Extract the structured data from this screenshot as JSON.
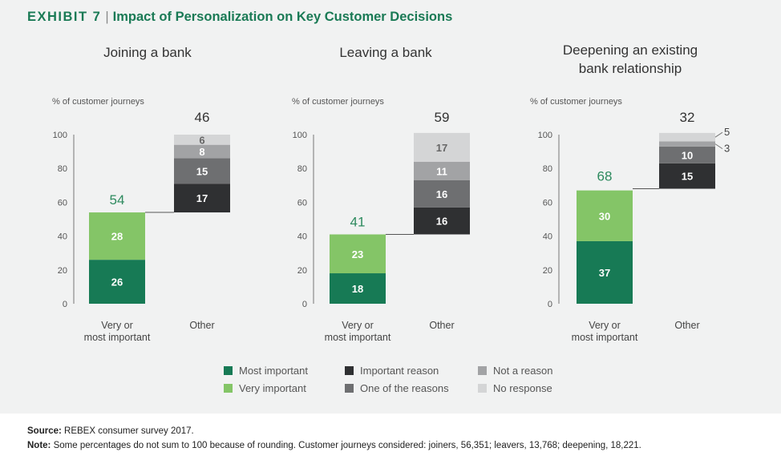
{
  "header": {
    "exhibit_label": "EXHIBIT 7",
    "separator": "|",
    "title": "Impact of Personalization on Key Customer Decisions"
  },
  "colors": {
    "most_important": "#177a55",
    "very_important": "#84c567",
    "important_reason": "#2f3032",
    "one_of_the_reasons": "#6e6f71",
    "not_a_reason": "#a2a3a5",
    "no_response": "#d4d5d6",
    "total_label_green": "#2d8a5e",
    "axis": "#777777"
  },
  "legend": [
    {
      "key": "most_important",
      "label": "Most important"
    },
    {
      "key": "very_important",
      "label": "Very important"
    },
    {
      "key": "important_reason",
      "label": "Important reason"
    },
    {
      "key": "one_of_the_reasons",
      "label": "One of the reasons"
    },
    {
      "key": "not_a_reason",
      "label": "Not a reason"
    },
    {
      "key": "no_response",
      "label": "No response"
    }
  ],
  "chart_data": [
    {
      "type": "bar",
      "title": "Joining a bank",
      "ylabel": "% of customer journeys",
      "ylim": [
        0,
        100
      ],
      "yticks": [
        0,
        20,
        40,
        60,
        80,
        100
      ],
      "categories": [
        "Very or most important",
        "Other"
      ],
      "category_lines": [
        [
          "Very or",
          "most important"
        ],
        [
          "Other"
        ]
      ],
      "totals": [
        54,
        46
      ],
      "bars": [
        {
          "base": 0,
          "segments": [
            {
              "key": "most_important",
              "value": 26
            },
            {
              "key": "very_important",
              "value": 28
            }
          ]
        },
        {
          "base": 54,
          "segments": [
            {
              "key": "important_reason",
              "value": 17
            },
            {
              "key": "one_of_the_reasons",
              "value": 15
            },
            {
              "key": "not_a_reason",
              "value": 8
            },
            {
              "key": "no_response",
              "value": 6
            }
          ]
        }
      ]
    },
    {
      "type": "bar",
      "title": "Leaving a bank",
      "ylabel": "% of customer journeys",
      "ylim": [
        0,
        100
      ],
      "yticks": [
        0,
        20,
        40,
        60,
        80,
        100
      ],
      "categories": [
        "Very or most important",
        "Other"
      ],
      "category_lines": [
        [
          "Very or",
          "most important"
        ],
        [
          "Other"
        ]
      ],
      "totals": [
        41,
        59
      ],
      "bars": [
        {
          "base": 0,
          "segments": [
            {
              "key": "most_important",
              "value": 18
            },
            {
              "key": "very_important",
              "value": 23
            }
          ]
        },
        {
          "base": 41,
          "segments": [
            {
              "key": "important_reason",
              "value": 16
            },
            {
              "key": "one_of_the_reasons",
              "value": 16
            },
            {
              "key": "not_a_reason",
              "value": 11
            },
            {
              "key": "no_response",
              "value": 17
            }
          ]
        }
      ]
    },
    {
      "type": "bar",
      "title": "Deepening an existing bank relationship",
      "title_lines": [
        "Deepening an existing",
        "bank relationship"
      ],
      "ylabel": "% of customer journeys",
      "ylim": [
        0,
        100
      ],
      "yticks": [
        0,
        20,
        40,
        60,
        80,
        100
      ],
      "categories": [
        "Very or most important",
        "Other"
      ],
      "category_lines": [
        [
          "Very or",
          "most important"
        ],
        [
          "Other"
        ]
      ],
      "totals": [
        68,
        32
      ],
      "bars": [
        {
          "base": 0,
          "segments": [
            {
              "key": "most_important",
              "value": 37
            },
            {
              "key": "very_important",
              "value": 30
            }
          ]
        },
        {
          "base": 68,
          "segments": [
            {
              "key": "important_reason",
              "value": 15
            },
            {
              "key": "one_of_the_reasons",
              "value": 10
            },
            {
              "key": "not_a_reason",
              "value": 3
            },
            {
              "key": "no_response",
              "value": 5
            }
          ]
        }
      ]
    }
  ],
  "footer": {
    "source_label": "Source:",
    "source_text": "REBEX consumer survey 2017.",
    "note_label": "Note:",
    "note_text": "Some percentages do not sum to 100 because of rounding. Customer journeys considered: joiners, 56,351; leavers, 13,768; deepening, 18,221."
  }
}
